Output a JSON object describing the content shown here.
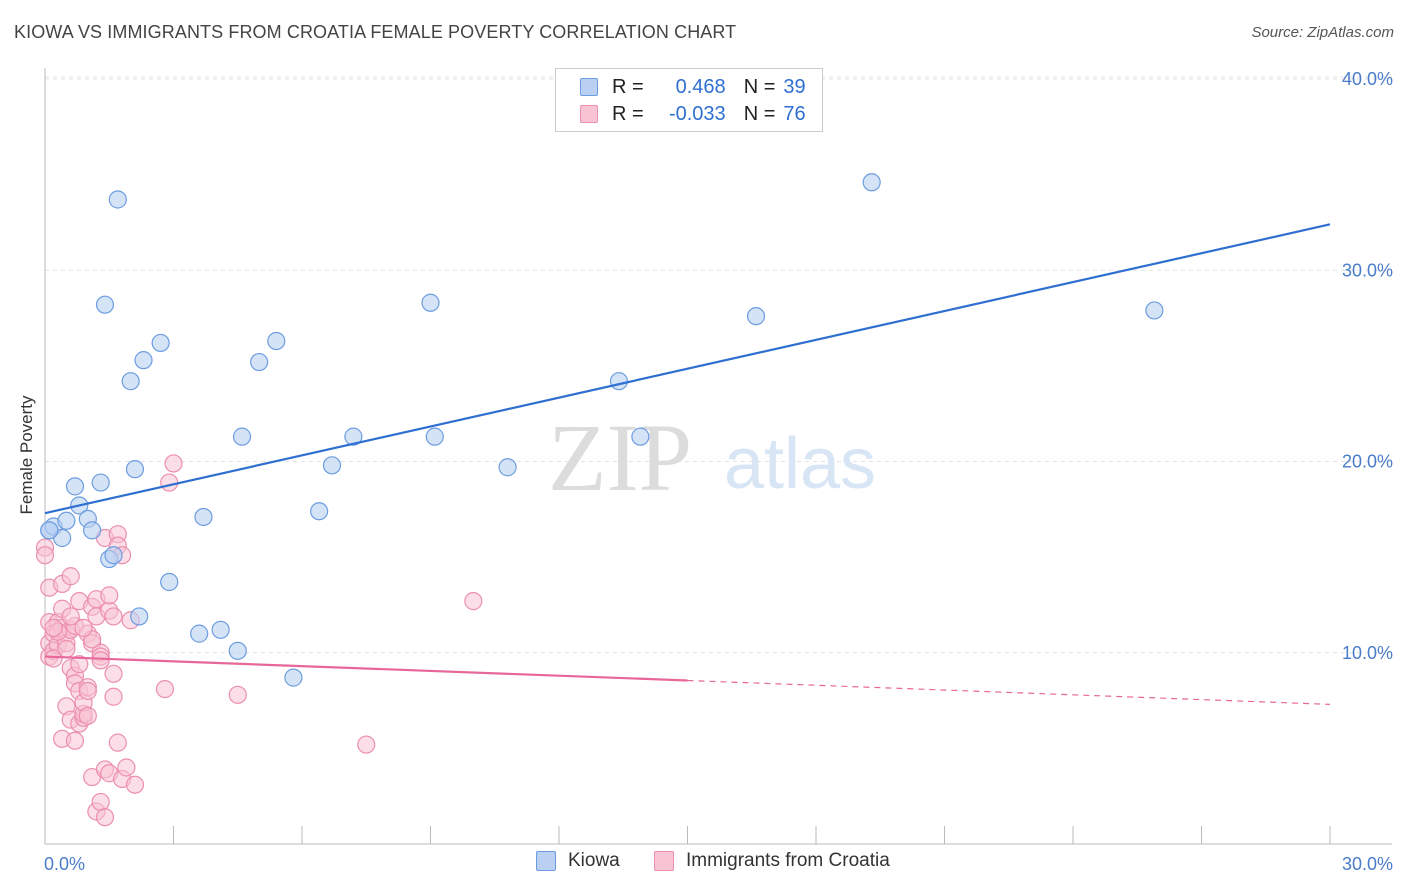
{
  "title": "KIOWA VS IMMIGRANTS FROM CROATIA FEMALE POVERTY CORRELATION CHART",
  "source": "Source: ZipAtlas.com",
  "watermark": {
    "zip": "ZIP",
    "atlas": "atlas"
  },
  "legend": {
    "rows": [
      {
        "r_label": "R =",
        "r_value": "0.468",
        "n_label": "N =",
        "n_value": "39"
      },
      {
        "r_label": "R =",
        "r_value": "-0.033",
        "n_label": "N =",
        "n_value": "76"
      }
    ]
  },
  "bottom_legend": {
    "series1": "Kiowa",
    "series2": "Immigrants from Croatia"
  },
  "colors": {
    "kiowa_fill": "#b9d0f2",
    "kiowa_stroke": "#6d9de0",
    "kiowa_line": "#2f6fd1",
    "croatia_fill": "#f8c3d3",
    "croatia_stroke": "#ec8fae",
    "croatia_line": "#e8679a",
    "axis_text": "#4a7cc9",
    "grid": "#e2e2e2"
  },
  "chart_data": {
    "type": "scatter",
    "title": "KIOWA VS IMMIGRANTS FROM CROATIA FEMALE POVERTY CORRELATION CHART",
    "ylabel": "Female Poverty",
    "xlabel": "",
    "xlim": [
      0,
      30
    ],
    "ylim": [
      0,
      40
    ],
    "x_tick_labels": [
      "0.0%",
      "30.0%"
    ],
    "y_tick_labels": [
      "10.0%",
      "20.0%",
      "30.0%",
      "40.0%"
    ],
    "y_ticks": [
      10,
      20,
      30,
      40
    ],
    "grid": true,
    "legend_position": "top-center",
    "series": [
      {
        "name": "Kiowa",
        "R": 0.468,
        "N": 39,
        "trend": {
          "x": [
            0,
            30
          ],
          "y": [
            17.3,
            32.4
          ],
          "dashed_from": null
        },
        "points": [
          [
            0.1,
            16.4
          ],
          [
            0.2,
            16.6
          ],
          [
            0.4,
            16.0
          ],
          [
            0.5,
            16.9
          ],
          [
            0.7,
            18.7
          ],
          [
            0.8,
            17.7
          ],
          [
            1.0,
            17.0
          ],
          [
            1.1,
            16.4
          ],
          [
            1.3,
            18.9
          ],
          [
            1.5,
            14.9
          ],
          [
            1.6,
            15.1
          ],
          [
            1.7,
            33.7
          ],
          [
            1.4,
            28.2
          ],
          [
            2.0,
            24.2
          ],
          [
            2.1,
            19.6
          ],
          [
            2.2,
            11.9
          ],
          [
            2.3,
            25.3
          ],
          [
            2.7,
            26.2
          ],
          [
            2.9,
            13.7
          ],
          [
            3.6,
            11.0
          ],
          [
            3.7,
            17.1
          ],
          [
            4.1,
            11.2
          ],
          [
            4.6,
            21.3
          ],
          [
            4.5,
            10.1
          ],
          [
            5.0,
            25.2
          ],
          [
            5.4,
            26.3
          ],
          [
            5.8,
            8.7
          ],
          [
            6.4,
            17.4
          ],
          [
            6.7,
            19.8
          ],
          [
            7.2,
            21.3
          ],
          [
            9.0,
            28.3
          ],
          [
            9.1,
            21.3
          ],
          [
            10.8,
            19.7
          ],
          [
            13.4,
            24.2
          ],
          [
            13.9,
            21.3
          ],
          [
            16.6,
            27.6
          ],
          [
            19.3,
            34.6
          ],
          [
            25.9,
            27.9
          ],
          [
            0.1,
            16.4
          ]
        ]
      },
      {
        "name": "Immigrants from Croatia",
        "R": -0.033,
        "N": 76,
        "trend": {
          "x": [
            0,
            30
          ],
          "y": [
            9.8,
            7.3
          ],
          "solid_until": 15
        },
        "points": [
          [
            0.0,
            15.5
          ],
          [
            0.1,
            13.4
          ],
          [
            0.1,
            11.6
          ],
          [
            0.1,
            10.5
          ],
          [
            0.1,
            9.8
          ],
          [
            0.2,
            11.0
          ],
          [
            0.2,
            10.1
          ],
          [
            0.3,
            11.6
          ],
          [
            0.3,
            10.4
          ],
          [
            0.4,
            12.3
          ],
          [
            0.4,
            11.3
          ],
          [
            0.4,
            13.6
          ],
          [
            0.4,
            5.5
          ],
          [
            0.5,
            11.0
          ],
          [
            0.5,
            10.5
          ],
          [
            0.5,
            7.2
          ],
          [
            0.6,
            14.0
          ],
          [
            0.6,
            11.2
          ],
          [
            0.6,
            6.5
          ],
          [
            0.6,
            9.2
          ],
          [
            0.7,
            8.8
          ],
          [
            0.7,
            8.4
          ],
          [
            0.7,
            5.4
          ],
          [
            0.7,
            11.4
          ],
          [
            0.8,
            12.7
          ],
          [
            0.8,
            8.0
          ],
          [
            0.8,
            6.3
          ],
          [
            0.9,
            6.6
          ],
          [
            0.9,
            6.8
          ],
          [
            0.9,
            7.4
          ],
          [
            1.0,
            8.2
          ],
          [
            1.0,
            8.0
          ],
          [
            1.0,
            6.7
          ],
          [
            1.0,
            11.0
          ],
          [
            1.1,
            12.4
          ],
          [
            1.1,
            3.5
          ],
          [
            1.1,
            10.5
          ],
          [
            1.2,
            12.8
          ],
          [
            1.2,
            11.9
          ],
          [
            1.2,
            1.7
          ],
          [
            1.3,
            10.0
          ],
          [
            1.3,
            9.8
          ],
          [
            1.3,
            2.2
          ],
          [
            1.4,
            1.4
          ],
          [
            1.4,
            16.0
          ],
          [
            1.4,
            3.9
          ],
          [
            1.5,
            3.7
          ],
          [
            1.5,
            12.2
          ],
          [
            1.5,
            13.0
          ],
          [
            1.6,
            8.9
          ],
          [
            1.6,
            7.7
          ],
          [
            1.7,
            5.3
          ],
          [
            1.7,
            16.2
          ],
          [
            1.7,
            15.6
          ],
          [
            1.8,
            15.1
          ],
          [
            1.8,
            3.4
          ],
          [
            1.9,
            4.0
          ],
          [
            2.0,
            11.7
          ],
          [
            2.1,
            3.1
          ],
          [
            2.8,
            8.1
          ],
          [
            2.9,
            18.9
          ],
          [
            3.0,
            19.9
          ],
          [
            4.5,
            7.8
          ],
          [
            7.5,
            5.2
          ],
          [
            10.0,
            12.7
          ],
          [
            0.0,
            15.1
          ],
          [
            0.2,
            9.7
          ],
          [
            0.3,
            11.1
          ],
          [
            0.5,
            10.2
          ],
          [
            0.8,
            9.4
          ],
          [
            1.1,
            10.7
          ],
          [
            1.3,
            9.6
          ],
          [
            0.6,
            11.9
          ],
          [
            0.9,
            11.3
          ],
          [
            1.6,
            11.9
          ],
          [
            0.2,
            11.3
          ]
        ]
      }
    ]
  }
}
